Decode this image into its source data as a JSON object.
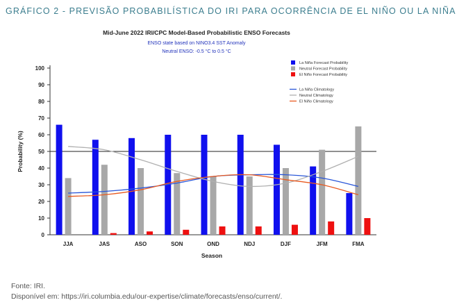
{
  "caption": "GRÁFICO 2 - PREVISÃO PROBABILÍSTICA DO IRI PARA OCORRÊNCIA DE EL NIÑO OU LA NIÑA",
  "source_line": "Fonte: IRI.",
  "link_line": "Disponível em: https://iri.columbia.edu/our-expertise/climate/forecasts/enso/current/.",
  "colors": {
    "lanina": "#1010ee",
    "neutral": "#a8a8a8",
    "elnino": "#ee1010",
    "lanina_clim": "#2855d8",
    "neutral_clim": "#b0b0b0",
    "elnino_clim": "#e85a20",
    "caption": "#3b7d8e"
  },
  "chart_data": {
    "type": "bar",
    "title": "Mid-June 2022 IRI/CPC Model-Based Probabilistic ENSO Forecasts",
    "subtitle1": "ENSO state based on NINO3.4 SST Anomaly",
    "subtitle2": "Neutral ENSO: -0.5 °C to 0.5 °C",
    "xlabel": "Season",
    "ylabel": "Probability (%)",
    "ylim": [
      0,
      100
    ],
    "yticks": [
      0,
      10,
      20,
      30,
      40,
      50,
      60,
      70,
      80,
      90,
      100
    ],
    "reference_line": 50,
    "categories": [
      "JJA",
      "JAS",
      "ASO",
      "SON",
      "OND",
      "NDJ",
      "DJF",
      "JFM",
      "FMA"
    ],
    "series": [
      {
        "name": "La Niña Forecast Probability",
        "kind": "bar",
        "values": [
          66,
          57,
          58,
          60,
          60,
          60,
          54,
          41,
          25
        ]
      },
      {
        "name": "Neutral Forecast Probability",
        "kind": "bar",
        "values": [
          34,
          42,
          40,
          37,
          35,
          35,
          40,
          51,
          65
        ]
      },
      {
        "name": "El Niño Forecast Probability",
        "kind": "bar",
        "values": [
          0,
          1,
          2,
          3,
          5,
          5,
          6,
          8,
          10
        ]
      },
      {
        "name": "La Niña Climatology",
        "kind": "line",
        "values": [
          25,
          26,
          28,
          31,
          35,
          36,
          36,
          34,
          29
        ]
      },
      {
        "name": "Neutral Climatology",
        "kind": "line",
        "values": [
          53,
          51,
          45,
          38,
          32,
          29,
          31,
          38,
          47
        ]
      },
      {
        "name": "El Niño Climatology",
        "kind": "line",
        "values": [
          23,
          24,
          27,
          32,
          35,
          36,
          33,
          30,
          24
        ]
      }
    ],
    "legend_position": "top-right",
    "grid": false
  }
}
